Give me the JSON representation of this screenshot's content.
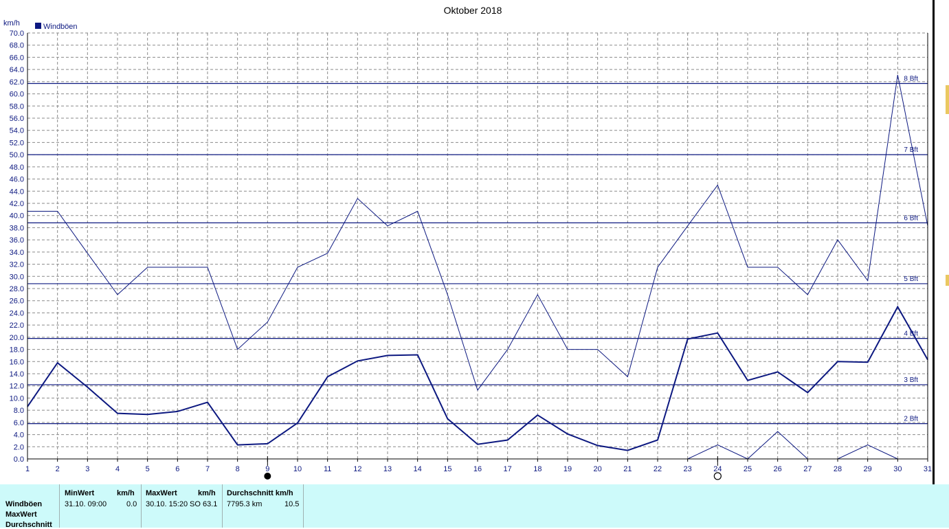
{
  "chart_data": {
    "type": "line",
    "title": "Oktober 2018",
    "ylabel": "km/h",
    "ylim": [
      0,
      70
    ],
    "y_ticks": [
      "0.0",
      "2.0",
      "4.0",
      "6.0",
      "8.0",
      "10.0",
      "12.0",
      "14.0",
      "16.0",
      "18.0",
      "20.0",
      "22.0",
      "24.0",
      "26.0",
      "28.0",
      "30.0",
      "32.0",
      "34.0",
      "36.0",
      "38.0",
      "40.0",
      "42.0",
      "44.0",
      "46.0",
      "48.0",
      "50.0",
      "52.0",
      "54.0",
      "56.0",
      "58.0",
      "60.0",
      "62.0",
      "64.0",
      "66.0",
      "68.0",
      "70.0"
    ],
    "x": [
      1,
      2,
      3,
      4,
      5,
      6,
      7,
      8,
      9,
      10,
      11,
      12,
      13,
      14,
      15,
      16,
      17,
      18,
      19,
      20,
      21,
      22,
      23,
      24,
      25,
      26,
      27,
      28,
      29,
      30,
      31
    ],
    "x_ticks": [
      "1",
      "2",
      "3",
      "4",
      "5",
      "6",
      "7",
      "8",
      "9",
      "10",
      "11",
      "12",
      "13",
      "14",
      "15",
      "16",
      "17",
      "18",
      "19",
      "20",
      "21",
      "22",
      "23",
      "24",
      "25",
      "26",
      "27",
      "28",
      "29",
      "30",
      "31"
    ],
    "legend": {
      "position": "top-left",
      "entries": [
        "Windböen"
      ]
    },
    "grid": true,
    "series": [
      {
        "name": "Windböen",
        "role": "daily maximum",
        "color": "#0c1880",
        "width": 1,
        "values": [
          40.7,
          40.7,
          33.8,
          27.0,
          31.5,
          31.5,
          31.5,
          18.0,
          22.5,
          31.5,
          33.8,
          42.8,
          38.3,
          40.7,
          27.0,
          11.3,
          18.0,
          27.0,
          18.0,
          18.0,
          13.5,
          31.5,
          38.3,
          45.0,
          31.5,
          31.5,
          27.0,
          36.0,
          29.3,
          63.1,
          38.3
        ]
      },
      {
        "name": "Windböen",
        "role": "daily average",
        "color": "#0c1880",
        "width": 2,
        "values": [
          8.6,
          15.8,
          11.8,
          7.5,
          7.3,
          7.8,
          9.3,
          2.3,
          2.5,
          5.9,
          13.5,
          16.1,
          17.0,
          17.1,
          6.6,
          2.4,
          3.1,
          7.2,
          4.1,
          2.2,
          1.4,
          3.1,
          19.7,
          20.7,
          12.9,
          14.3,
          10.9,
          16.0,
          15.9,
          25.0,
          16.3
        ]
      },
      {
        "name": "Windböen",
        "role": "daily minimum",
        "color": "#0c1880",
        "width": 1,
        "x": [
          23,
          24,
          25,
          26,
          27,
          28,
          29,
          30
        ],
        "values": [
          0.0,
          2.3,
          0.0,
          4.5,
          0.0,
          0.0,
          2.3,
          0.0
        ]
      }
    ],
    "reference_lines": [
      {
        "label": "2 Bft",
        "value": 5.8
      },
      {
        "label": "3 Bft",
        "value": 12.2
      },
      {
        "label": "4 Bft",
        "value": 19.8
      },
      {
        "label": "5 Bft",
        "value": 28.8
      },
      {
        "label": "6 Bft",
        "value": 38.8
      },
      {
        "label": "7 Bft",
        "value": 50.0
      },
      {
        "label": "8 Bft",
        "value": 61.7
      }
    ],
    "moon_phases": [
      {
        "day": 9,
        "phase": "new-moon",
        "symbol": "●"
      },
      {
        "day": 24,
        "phase": "full-moon",
        "symbol": "○"
      }
    ]
  },
  "stats": {
    "row_labels": [
      "Windböen",
      "MaxWert",
      "Durchschnitt"
    ],
    "min": {
      "header": "MinWert",
      "unit": "km/h",
      "datetime": "31.10.  09:00",
      "value": "0.0"
    },
    "max": {
      "header": "MaxWert",
      "unit": "km/h",
      "datetime": "30.10.  15:20",
      "direction": "SO",
      "value": "63.1"
    },
    "avg": {
      "header": "Durchschnitt km/h",
      "distance": "7795.3 km",
      "value": "10.5"
    }
  },
  "colors": {
    "series": "#0c1880",
    "grid": "#8a8a8a",
    "panel_bg": "#cdfafa"
  }
}
